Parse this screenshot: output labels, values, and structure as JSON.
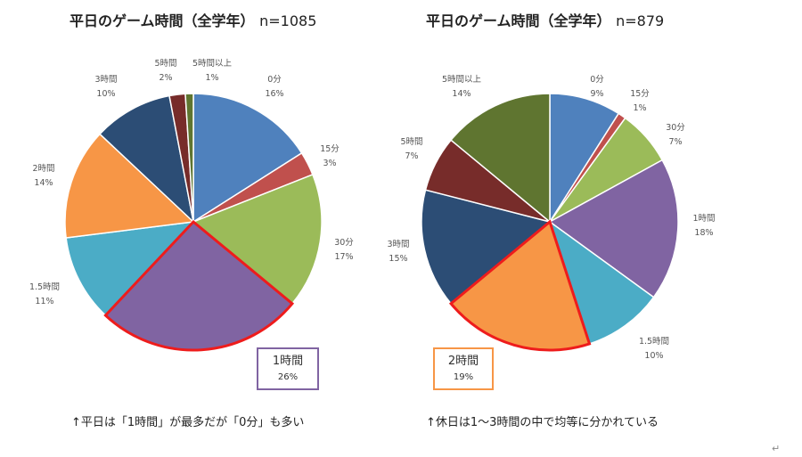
{
  "chart_data": [
    {
      "type": "pie",
      "title": "平日のゲーム時間（全学年）",
      "n_label": "n=1085",
      "categories": [
        "0分",
        "15分",
        "30分",
        "1時間",
        "1.5時間",
        "2時間",
        "3時間",
        "5時間",
        "5時間以上"
      ],
      "values": [
        16,
        3,
        17,
        26,
        11,
        14,
        10,
        2,
        1
      ],
      "value_labels": [
        "16%",
        "3%",
        "17%",
        "26%",
        "11%",
        "14%",
        "10%",
        "2%",
        "1%"
      ],
      "colors": [
        "#4f81bd",
        "#c0504d",
        "#9bbb59",
        "#8064a2",
        "#4bacc6",
        "#f79646",
        "#2c4d75",
        "#772c2a",
        "#5f7530"
      ],
      "highlighted": "1時間",
      "highlight_color": "#ee1c1c",
      "callout_border": "#8064a2",
      "caption": "↑平日は「1時間」が最多だが「0分」も多い"
    },
    {
      "type": "pie",
      "title": "平日のゲーム時間（全学年）",
      "n_label": "n=879",
      "categories": [
        "0分",
        "15分",
        "30分",
        "1時間",
        "1.5時間",
        "2時間",
        "3時間",
        "5時間",
        "5時間以上"
      ],
      "values": [
        9,
        1,
        7,
        18,
        10,
        19,
        15,
        7,
        14
      ],
      "value_labels": [
        "9%",
        "1%",
        "7%",
        "18%",
        "10%",
        "19%",
        "15%",
        "7%",
        "14%"
      ],
      "colors": [
        "#4f81bd",
        "#c0504d",
        "#9bbb59",
        "#8064a2",
        "#4bacc6",
        "#f79646",
        "#2c4d75",
        "#772c2a",
        "#5f7530"
      ],
      "highlighted": "2時間",
      "highlight_color": "#ee1c1c",
      "callout_border": "#f79646",
      "caption": "↑休日は1～3時間の中で均等に分かれている"
    }
  ],
  "return_mark": "↵"
}
